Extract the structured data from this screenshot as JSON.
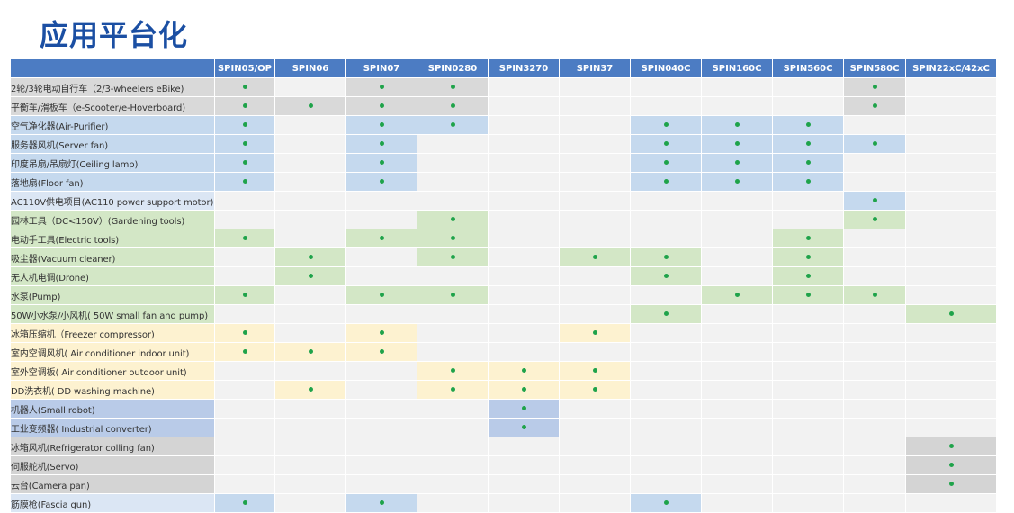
{
  "title": "应用平台化",
  "columns": [
    "SPIN05/OP",
    "SPIN06",
    "SPIN07",
    "SPIN0280",
    "SPIN3270",
    "SPIN37",
    "SPIN040C",
    "SPIN160C",
    "SPIN560C",
    "SPIN580C",
    "SPIN22xC/42xC"
  ],
  "colors": {
    "header": "#4c7cc3",
    "dot": "#1fa34a",
    "pink": "#d9d9d9",
    "blue": "#c5d9ee",
    "green": "#d3e7c6",
    "cream": "#fdf2d0",
    "navy": "#b9cbe8",
    "grey": "#d4d4d4",
    "empty": "#f2f2f2"
  },
  "rows": [
    {
      "label": "2轮/3轮电动自行车（2/3-wheelers eBike)",
      "group": "pink",
      "marks": [
        1,
        0,
        1,
        1,
        0,
        0,
        0,
        0,
        0,
        1,
        0
      ]
    },
    {
      "label": "平衡车/滑板车（e-Scooter/e-Hoverboard)",
      "group": "pink",
      "marks": [
        1,
        1,
        1,
        1,
        0,
        0,
        0,
        0,
        0,
        1,
        0
      ]
    },
    {
      "label": "空气净化器(Air-Purifier)",
      "group": "blue",
      "marks": [
        1,
        0,
        1,
        1,
        0,
        0,
        1,
        1,
        1,
        0,
        0
      ]
    },
    {
      "label": "服务器风机(Server fan)",
      "group": "blue",
      "marks": [
        1,
        0,
        1,
        0,
        0,
        0,
        1,
        1,
        1,
        1,
        0
      ]
    },
    {
      "label": "印度吊扇/吊扇灯(Ceiling lamp)",
      "group": "blue",
      "marks": [
        1,
        0,
        1,
        0,
        0,
        0,
        1,
        1,
        1,
        0,
        0
      ]
    },
    {
      "label": "落地扇(Floor fan)",
      "group": "blue",
      "marks": [
        1,
        0,
        1,
        0,
        0,
        0,
        1,
        1,
        1,
        0,
        0
      ]
    },
    {
      "label": "AC110V供电项目(AC110 power support motor)",
      "group": "lblue",
      "marks": [
        0,
        0,
        0,
        0,
        0,
        0,
        0,
        0,
        0,
        1,
        0
      ]
    },
    {
      "label": "园林工具（DC<150V）(Gardening tools)",
      "group": "green",
      "marks": [
        0,
        0,
        0,
        1,
        0,
        0,
        0,
        0,
        0,
        1,
        0
      ]
    },
    {
      "label": "电动手工具(Electric tools)",
      "group": "green",
      "marks": [
        1,
        0,
        1,
        1,
        0,
        0,
        0,
        0,
        1,
        0,
        0
      ]
    },
    {
      "label": "吸尘器(Vacuum cleaner)",
      "group": "green",
      "marks": [
        0,
        1,
        0,
        1,
        0,
        1,
        1,
        0,
        1,
        0,
        0
      ]
    },
    {
      "label": "无人机电调(Drone)",
      "group": "green",
      "marks": [
        0,
        1,
        0,
        0,
        0,
        0,
        1,
        0,
        1,
        0,
        0
      ]
    },
    {
      "label": "水泵(Pump)",
      "group": "green",
      "marks": [
        1,
        0,
        1,
        1,
        0,
        0,
        0,
        1,
        1,
        1,
        0
      ]
    },
    {
      "label": "50W小水泵/小风机( 50W small fan and pump)",
      "group": "green",
      "marks": [
        0,
        0,
        0,
        0,
        0,
        0,
        1,
        0,
        0,
        0,
        1
      ]
    },
    {
      "label": "冰箱压缩机（Freezer compressor)",
      "group": "cream",
      "marks": [
        1,
        0,
        1,
        0,
        0,
        1,
        0,
        0,
        0,
        0,
        0
      ]
    },
    {
      "label": "室内空调风机( Air conditioner indoor unit)",
      "group": "cream",
      "marks": [
        1,
        1,
        1,
        0,
        0,
        0,
        0,
        0,
        0,
        0,
        0
      ]
    },
    {
      "label": "室外空调板( Air conditioner outdoor unit)",
      "group": "cream",
      "marks": [
        0,
        0,
        0,
        1,
        1,
        1,
        0,
        0,
        0,
        0,
        0
      ]
    },
    {
      "label": "DD洗衣机( DD washing machine)",
      "group": "cream",
      "marks": [
        0,
        1,
        0,
        1,
        1,
        1,
        0,
        0,
        0,
        0,
        0
      ]
    },
    {
      "label": "机器人(Small robot)",
      "group": "navy",
      "marks": [
        0,
        0,
        0,
        0,
        1,
        0,
        0,
        0,
        0,
        0,
        0
      ]
    },
    {
      "label": "工业变频器( Industrial converter)",
      "group": "navy",
      "marks": [
        0,
        0,
        0,
        0,
        1,
        0,
        0,
        0,
        0,
        0,
        0
      ]
    },
    {
      "label": "冰箱风机(Refrigerator colling fan)",
      "group": "grey",
      "marks": [
        0,
        0,
        0,
        0,
        0,
        0,
        0,
        0,
        0,
        0,
        1
      ]
    },
    {
      "label": "伺服舵机(Servo)",
      "group": "grey",
      "marks": [
        0,
        0,
        0,
        0,
        0,
        0,
        0,
        0,
        0,
        0,
        1
      ]
    },
    {
      "label": "云台(Camera pan)",
      "group": "grey",
      "marks": [
        0,
        0,
        0,
        0,
        0,
        0,
        0,
        0,
        0,
        0,
        1
      ]
    },
    {
      "label": "筋膜枪(Fascia gun)",
      "group": "lblue",
      "marks": [
        1,
        0,
        1,
        0,
        0,
        0,
        1,
        0,
        0,
        0,
        0
      ]
    }
  ]
}
